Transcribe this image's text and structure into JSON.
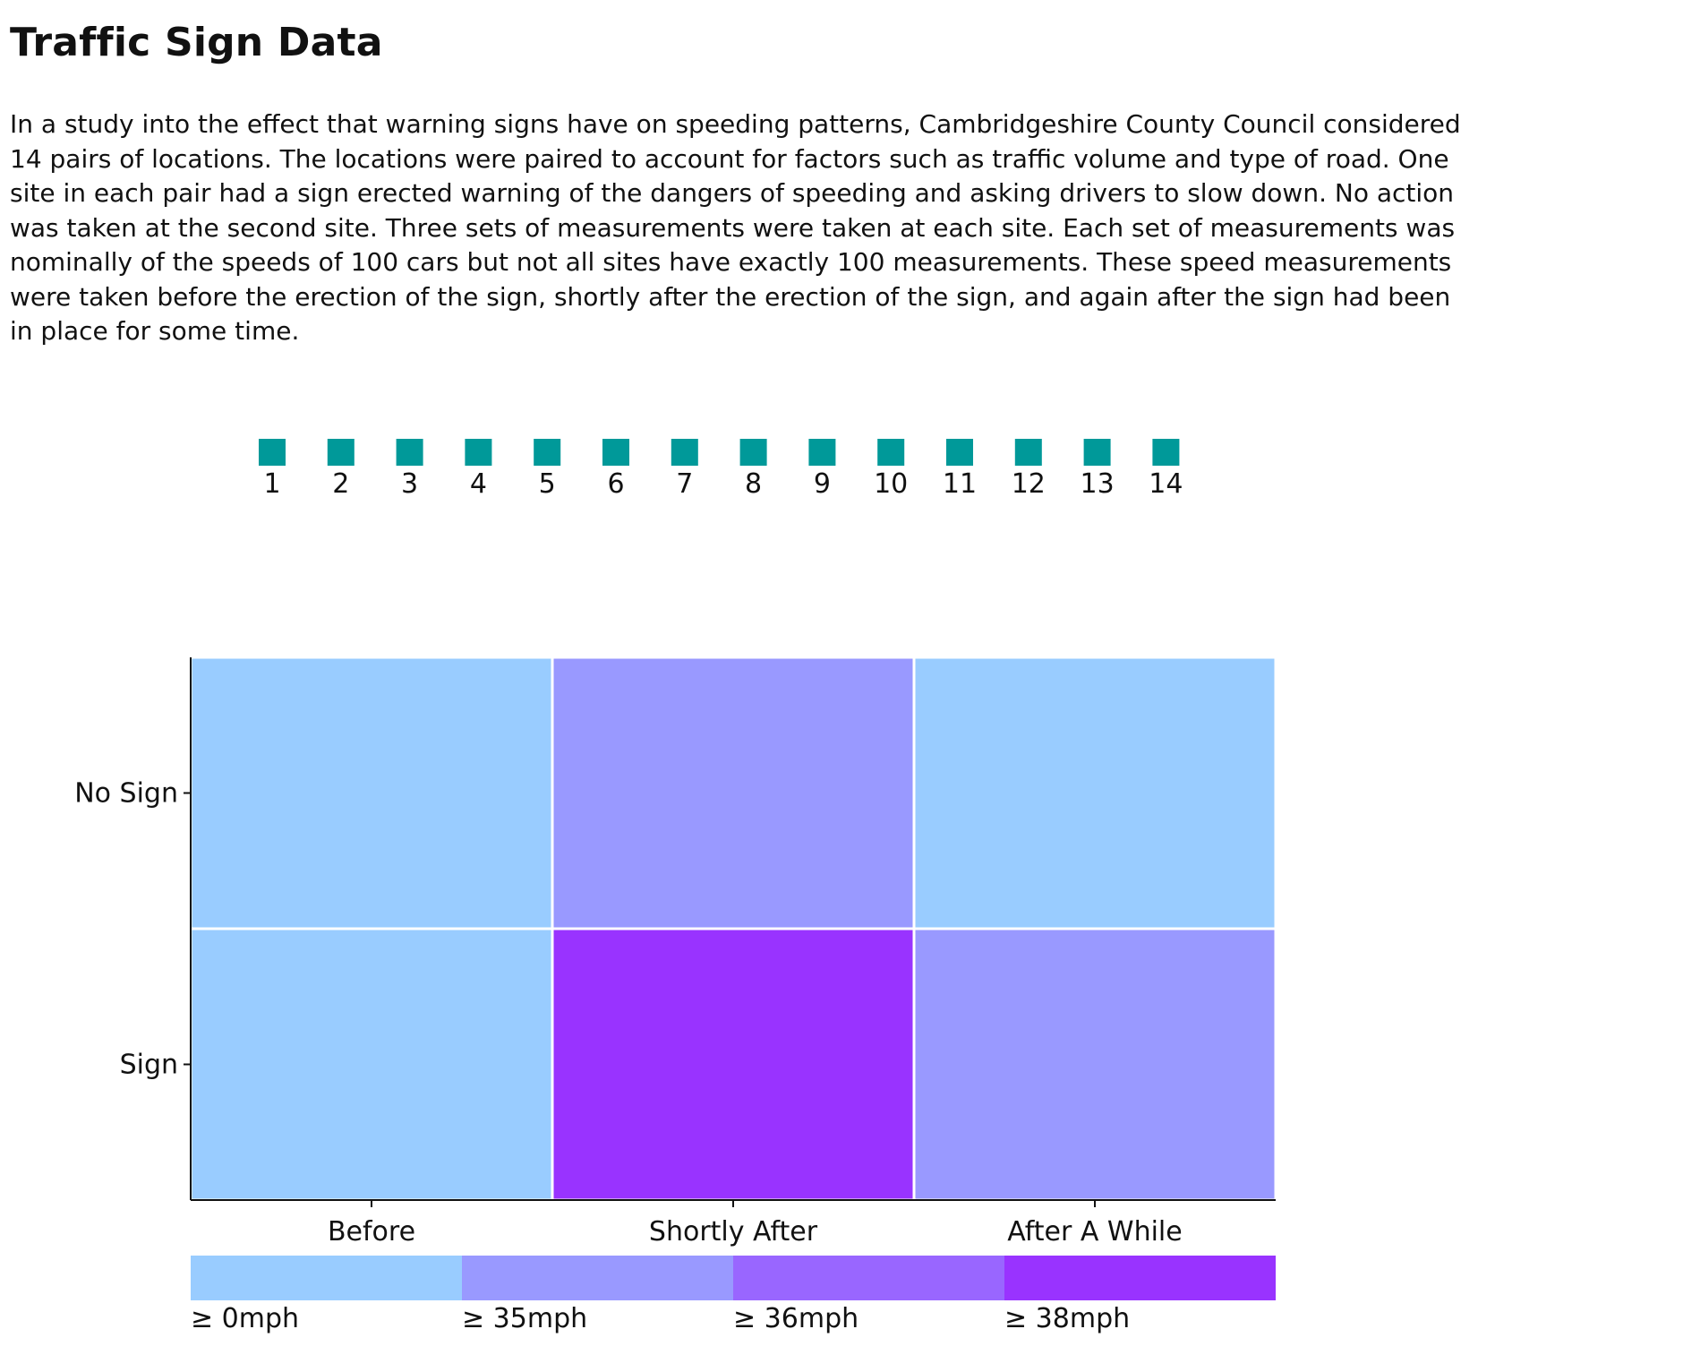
{
  "header": {
    "title": "Traffic Sign Data",
    "description": "In a study into the effect that warning signs have on speeding patterns, Cambridgeshire County Council considered 14 pairs of locations. The locations were paired to account for factors such as traffic volume and type of road. One site in each pair had a sign erected warning of the dangers of speeding and asking drivers to slow down. No action was taken at the second site. Three sets of measurements were taken at each site. Each set of measurements was nominally of the speeds of 100 cars but not all sites have exactly 100 measurements. These speed measurements were taken before the erection of the sign, shortly after the erection of the sign, and again after the sign had been in place for some time."
  },
  "site_selector": {
    "color": "#009999",
    "sites": [
      "1",
      "2",
      "3",
      "4",
      "5",
      "6",
      "7",
      "8",
      "9",
      "10",
      "11",
      "12",
      "13",
      "14"
    ]
  },
  "chart_data": {
    "type": "heatmap",
    "x_categories": [
      "Before",
      "Shortly After",
      "After A While"
    ],
    "y_categories": [
      "No Sign",
      "Sign"
    ],
    "cells": [
      [
        "≥ 0mph",
        "≥ 35mph",
        "≥ 0mph"
      ],
      [
        "≥ 0mph",
        "≥ 38mph",
        "≥ 35mph"
      ]
    ],
    "legend": {
      "bins": [
        {
          "label": "≥ 0mph",
          "color": "#99ccff"
        },
        {
          "label": "≥ 35mph",
          "color": "#9999ff"
        },
        {
          "label": "≥ 36mph",
          "color": "#9966ff"
        },
        {
          "label": "≥ 38mph",
          "color": "#9933ff"
        }
      ]
    },
    "grid": false
  }
}
